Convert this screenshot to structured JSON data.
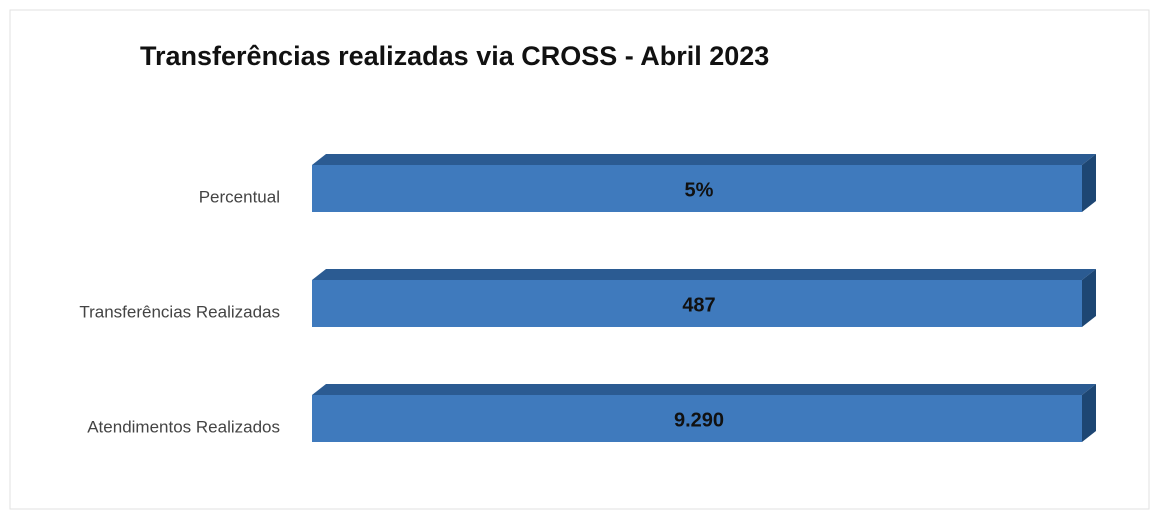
{
  "chart_data": {
    "type": "bar",
    "title": "Transferências realizadas via CROSS - Abril 2023",
    "categories": [
      "Percentual",
      "Transferências Realizadas",
      "Atendimentos Realizados"
    ],
    "values": [
      5,
      487,
      9290
    ],
    "value_labels": [
      "5%",
      "487",
      "9.290"
    ],
    "color": "#3f7abd"
  }
}
